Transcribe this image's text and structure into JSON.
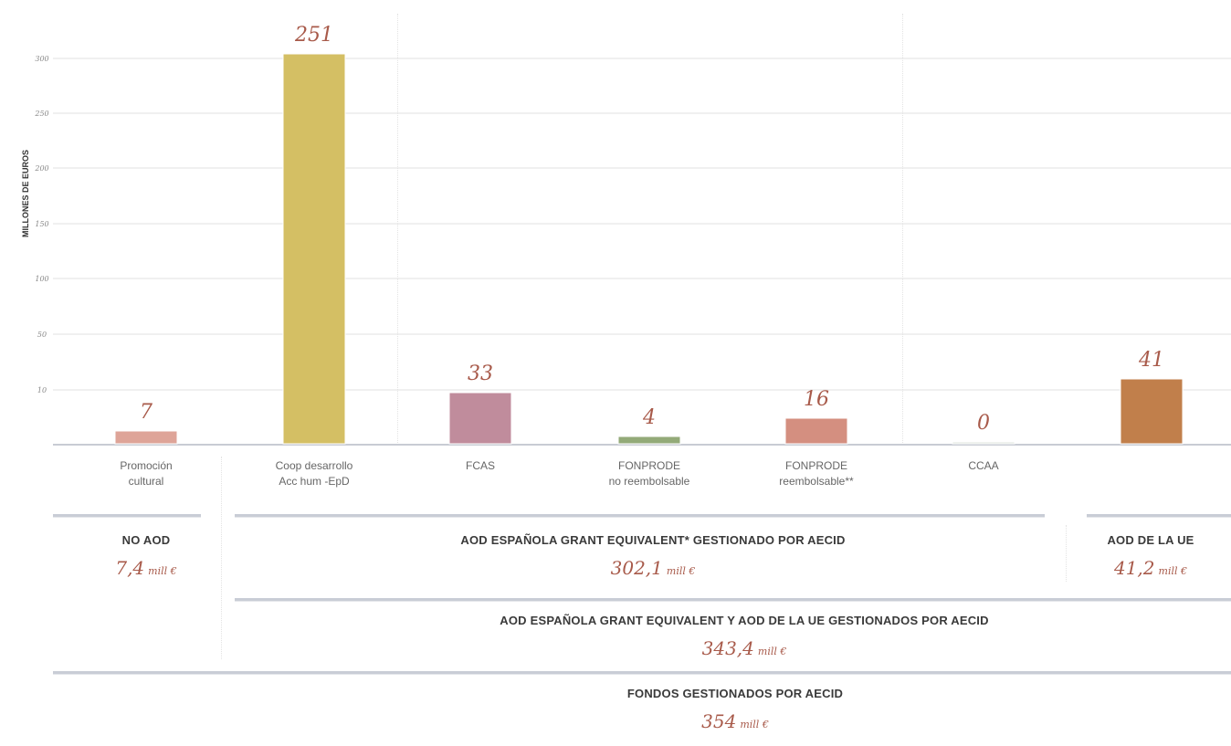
{
  "chart_data": {
    "type": "bar",
    "ylabel": "MILLONES DE EUROS",
    "yticks": [
      10,
      50,
      100,
      150,
      200,
      250,
      300
    ],
    "categories": [
      {
        "line1": "Promoción",
        "line2": "cultural"
      },
      {
        "line1": "Coop desarrollo",
        "line2": "Acc hum -EpD"
      },
      {
        "line1": "FCAS",
        "line2": ""
      },
      {
        "line1": "FONPRODE",
        "line2": "no reembolsable"
      },
      {
        "line1": "FONPRODE",
        "line2": "reembolsable**"
      },
      {
        "line1": "CCAA",
        "line2": ""
      },
      {
        "line1": "",
        "line2": ""
      }
    ],
    "values": [
      7,
      251,
      33,
      4,
      16,
      0,
      41
    ],
    "bar_labels": [
      "7",
      "251",
      "33",
      "4",
      "16",
      "0",
      "41"
    ],
    "colors": [
      "#dea498",
      "#d4bf64",
      "#c08c9c",
      "#93aa78",
      "#d48f80",
      "#dfe5dd",
      "#c17f4b"
    ]
  },
  "sections": {
    "no_aod": {
      "title": "NO AOD",
      "value": "7,4",
      "unit": "mill €"
    },
    "aod_espanola": {
      "title": "AOD ESPAÑOLA GRANT EQUIVALENT* GESTIONADO POR AECID",
      "value": "302,1",
      "unit": "mill €"
    },
    "aod_ue": {
      "title": "AOD DE LA UE",
      "value": "41,2",
      "unit": "mill €"
    },
    "aod_total": {
      "title": "AOD ESPAÑOLA GRANT EQUIVALENT Y AOD DE LA UE GESTIONADOS POR AECID",
      "value": "343,4",
      "unit": "mill €"
    },
    "fondos": {
      "title": "FONDOS GESTIONADOS POR AECID",
      "value": "354",
      "unit": "mill €"
    }
  }
}
